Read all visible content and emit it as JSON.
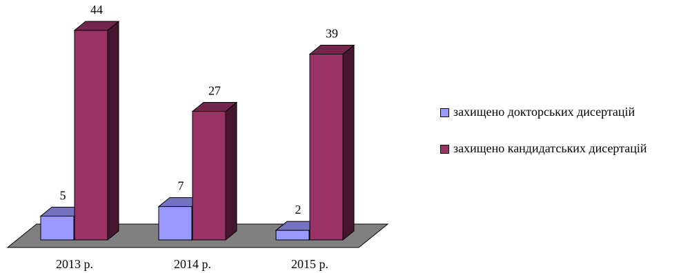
{
  "chart_data": {
    "type": "bar",
    "categories": [
      "2013 р.",
      "2014 р.",
      "2015 р."
    ],
    "series": [
      {
        "name": "захищено докторських дисертацій",
        "values": [
          5,
          7,
          2
        ],
        "color": "#9999ff"
      },
      {
        "name": "захищено кандидатських дисертацій",
        "values": [
          44,
          27,
          39
        ],
        "color": "#993366"
      }
    ],
    "ylim": [
      0,
      44
    ],
    "grid": false,
    "legend_position": "right",
    "floor_color": "#808080"
  }
}
